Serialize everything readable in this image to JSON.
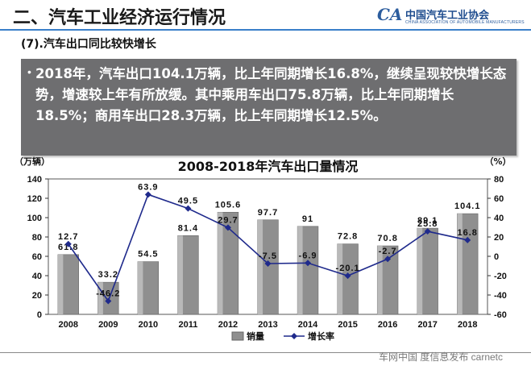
{
  "header": {
    "title": "二、汽车工业经济运行情况",
    "logo_mark": "CA",
    "logo_name": "中国汽车工业协会",
    "logo_sub": "CHINA ASSOCIATION OF AUTOMOBILE MANUFACTURERS"
  },
  "subtitle": "(7).汽车出口同比较快增长",
  "note": {
    "bullet": "•",
    "text": "2018年，汽车出口104.1万辆，比上年同期增长16.8%，继续呈现较快增长态势，增速较上年有所放缓。其中乘用车出口75.8万辆，比上年同期增长18.5%；商用车出口28.3万辆，比上年同期增长12.5%。"
  },
  "watermark": "车网中国 度信息发布 carnetc",
  "colors": {
    "bar": "#8f8f8f",
    "line": "#1f2a8c",
    "note_bg": "#6e6e70",
    "header_rule": "#3a7fc9"
  },
  "chart_data": {
    "type": "bar",
    "title": "2008-2018年汽车出口量情况",
    "categories": [
      "2008",
      "2009",
      "2010",
      "2011",
      "2012",
      "2013",
      "2014",
      "2015",
      "2016",
      "2017",
      "2018"
    ],
    "series": [
      {
        "name": "销量",
        "type": "bar",
        "axis": "left",
        "values": [
          61.8,
          33.2,
          54.5,
          81.4,
          105.6,
          97.7,
          91,
          72.8,
          70.8,
          89.1,
          104.1
        ]
      },
      {
        "name": "增长率",
        "type": "line",
        "axis": "right",
        "values": [
          12.7,
          -46.2,
          63.9,
          49.5,
          29.7,
          -7.5,
          -6.9,
          -20.1,
          -2.7,
          25.8,
          16.8
        ]
      }
    ],
    "bar_labels": [
      "61.8",
      "33.2",
      "54.5",
      "81.4",
      "105.6",
      "97.7",
      "91",
      "72.8",
      "70.8",
      "89.1",
      "104.1"
    ],
    "line_labels": [
      "12.7",
      "-46.2",
      "63.9",
      "49.5",
      "29.7",
      "-7.5",
      "-6.9",
      "-20.1",
      "-2.7",
      "25.8",
      "16.8"
    ],
    "y_left": {
      "unit": "（万辆）",
      "min": 0,
      "max": 140,
      "ticks": [
        0,
        20,
        40,
        60,
        80,
        100,
        120,
        140
      ]
    },
    "y_right": {
      "unit": "（%）",
      "min": -60,
      "max": 80,
      "ticks": [
        -60,
        -40,
        -20,
        0,
        20,
        40,
        60,
        80
      ]
    },
    "legend": [
      "销量",
      "增长率"
    ],
    "legend_position": "bottom"
  }
}
